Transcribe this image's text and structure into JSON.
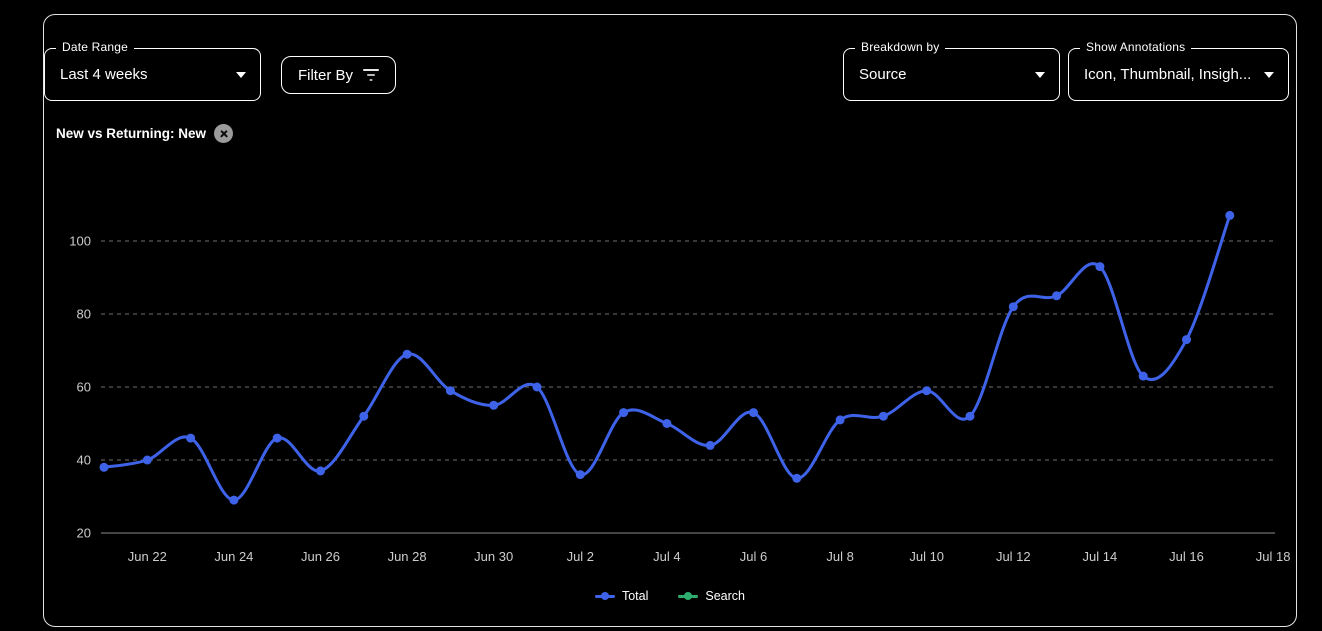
{
  "colors": {
    "background": "#000000",
    "card_border": "#e3e3e3",
    "control_border": "#ffffff",
    "text": "#ffffff",
    "axis_text": "#cccccc",
    "gridline": "#707070",
    "axis_line": "#8a8a8a",
    "chip_close_bg": "#9b9b9b"
  },
  "controls": {
    "date_range": {
      "label": "Date Range",
      "value": "Last 4 weeks"
    },
    "filter_by": {
      "label": "Filter By"
    },
    "breakdown": {
      "label": "Breakdown by",
      "value": "Source"
    },
    "annotations": {
      "label": "Show Annotations",
      "value": "Icon, Thumbnail, Insigh..."
    }
  },
  "filter_chip": {
    "label": "New vs Returning: New"
  },
  "chart_data": {
    "type": "line",
    "title": "",
    "xlabel": "",
    "ylabel": "",
    "grid": "dashed-horizontal",
    "legend_position": "bottom",
    "ylim": [
      20,
      110
    ],
    "yticks": [
      20,
      40,
      60,
      80,
      100
    ],
    "x": [
      "Jun 21",
      "Jun 22",
      "Jun 23",
      "Jun 24",
      "Jun 25",
      "Jun 26",
      "Jun 27",
      "Jun 28",
      "Jun 29",
      "Jun 30",
      "Jul 1",
      "Jul 2",
      "Jul 3",
      "Jul 4",
      "Jul 5",
      "Jul 6",
      "Jul 7",
      "Jul 8",
      "Jul 9",
      "Jul 10",
      "Jul 11",
      "Jul 12",
      "Jul 13",
      "Jul 14",
      "Jul 15",
      "Jul 16",
      "Jul 17"
    ],
    "xticks": [
      {
        "label": "Jun 22",
        "index": 1
      },
      {
        "label": "Jun 24",
        "index": 3
      },
      {
        "label": "Jun 26",
        "index": 5
      },
      {
        "label": "Jun 28",
        "index": 7
      },
      {
        "label": "Jun 30",
        "index": 9
      },
      {
        "label": "Jul 2",
        "index": 11
      },
      {
        "label": "Jul 4",
        "index": 13
      },
      {
        "label": "Jul 6",
        "index": 15
      },
      {
        "label": "Jul 8",
        "index": 17
      },
      {
        "label": "Jul 10",
        "index": 19
      },
      {
        "label": "Jul 12",
        "index": 21
      },
      {
        "label": "Jul 14",
        "index": 23
      },
      {
        "label": "Jul 16",
        "index": 25
      },
      {
        "label": "Jul 18",
        "index": 27
      }
    ],
    "series": [
      {
        "name": "Total",
        "color": "#3e63e8",
        "values": [
          38,
          40,
          46,
          29,
          46,
          37,
          52,
          69,
          59,
          55,
          60,
          36,
          53,
          50,
          44,
          53,
          35,
          51,
          52,
          59,
          52,
          82,
          85,
          93,
          63,
          73,
          107
        ]
      },
      {
        "name": "Search",
        "color": "#2eae6e",
        "values": []
      }
    ]
  }
}
